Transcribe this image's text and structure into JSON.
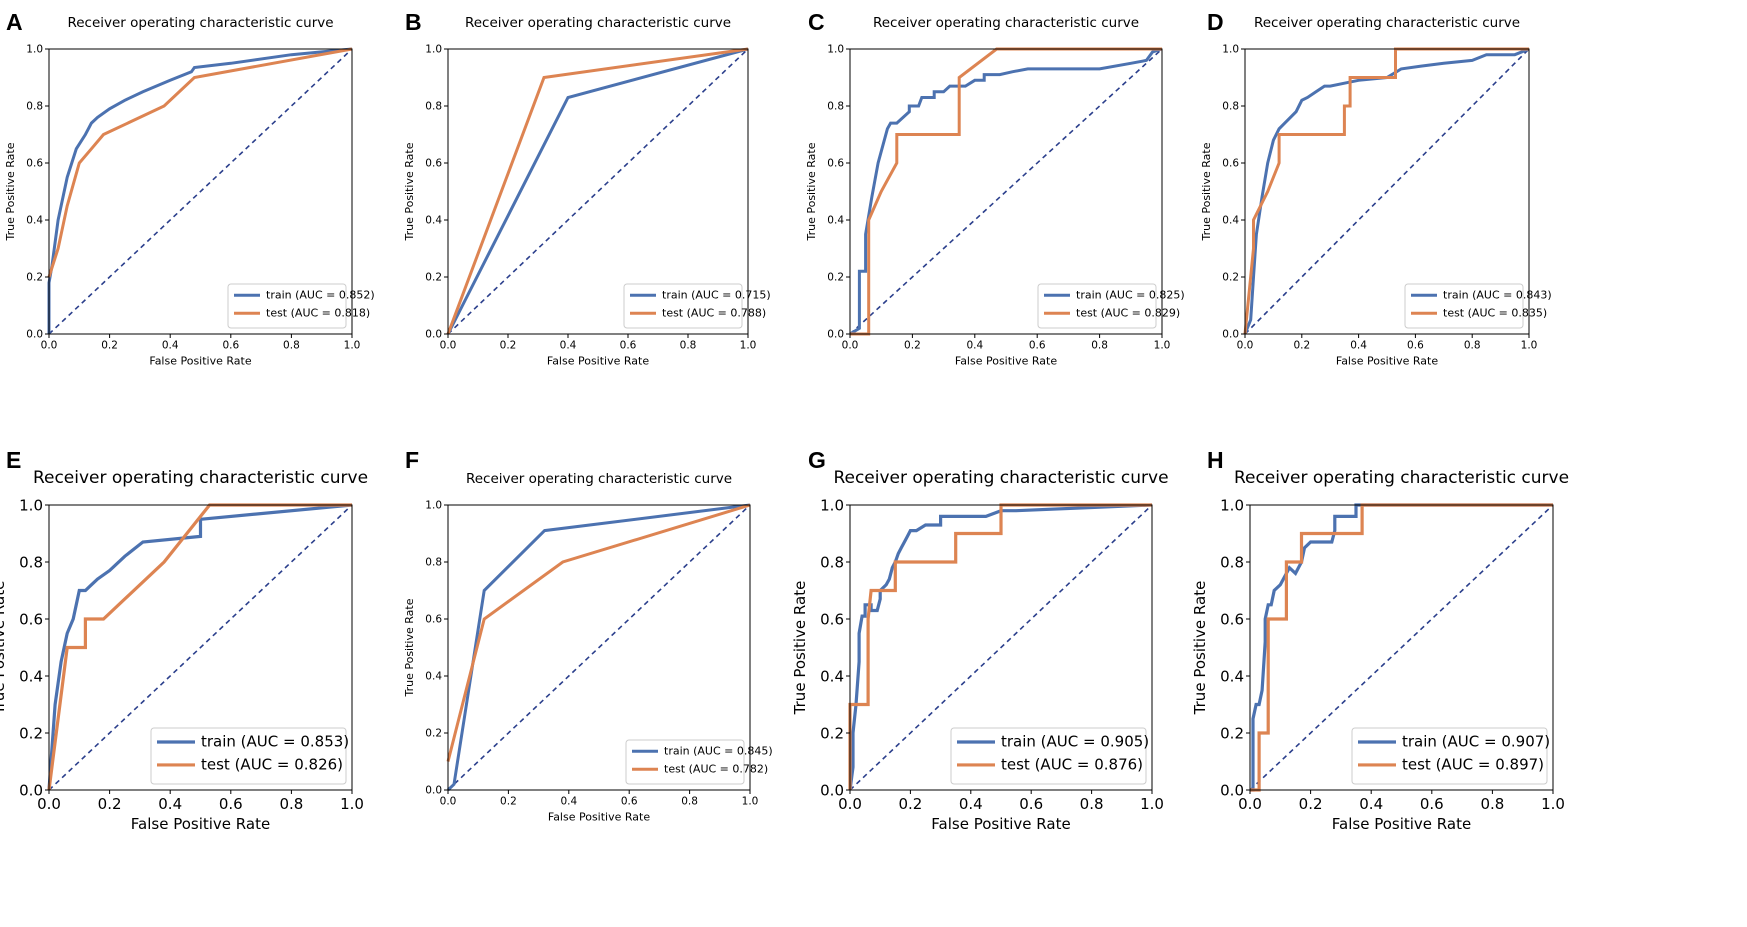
{
  "figure": {
    "description_labels": [
      "A",
      "B",
      "C",
      "D",
      "E",
      "F",
      "G",
      "H"
    ]
  },
  "chart_data": [
    {
      "panel": "A",
      "type": "line",
      "title": "Receiver operating characteristic curve",
      "xlabel": "False Positive Rate",
      "ylabel": "True Positive Rate",
      "xlim": [
        0,
        1
      ],
      "ylim": [
        0,
        1
      ],
      "xticks": [
        "0.0",
        "0.2",
        "0.4",
        "0.6",
        "0.8",
        "1.0"
      ],
      "yticks": [
        "0.0",
        "0.2",
        "0.4",
        "0.6",
        "0.8",
        "1.0"
      ],
      "legend_position": "lower-right",
      "series": [
        {
          "name": "train (AUC = 0.852)",
          "color": "#4c72b0",
          "x": [
            0,
            0,
            0.01,
            0.03,
            0.06,
            0.09,
            0.12,
            0.14,
            0.16,
            0.2,
            0.25,
            0.31,
            0.4,
            0.47,
            0.48,
            0.6,
            0.8,
            1
          ],
          "y": [
            0,
            0.18,
            0.24,
            0.4,
            0.55,
            0.65,
            0.7,
            0.74,
            0.76,
            0.79,
            0.82,
            0.85,
            0.89,
            0.92,
            0.935,
            0.95,
            0.98,
            1
          ]
        },
        {
          "name": "test (AUC = 0.818)",
          "color": "#dd8452",
          "x": [
            0,
            0.03,
            0.06,
            0.1,
            0.14,
            0.18,
            0.38,
            0.48,
            1
          ],
          "y": [
            0.2,
            0.3,
            0.45,
            0.6,
            0.65,
            0.7,
            0.8,
            0.9,
            1
          ]
        }
      ],
      "diagonal_color": "#2b3f8c"
    },
    {
      "panel": "B",
      "type": "line",
      "title": "Receiver operating characteristic curve",
      "xlabel": "False Positive Rate",
      "ylabel": "True Positive Rate",
      "xlim": [
        0,
        1
      ],
      "ylim": [
        0,
        1
      ],
      "xticks": [
        "0.0",
        "0.2",
        "0.4",
        "0.6",
        "0.8",
        "1.0"
      ],
      "yticks": [
        "0.0",
        "0.2",
        "0.4",
        "0.6",
        "0.8",
        "1.0"
      ],
      "legend_position": "lower-right",
      "series": [
        {
          "name": "train (AUC = 0.715)",
          "color": "#4c72b0",
          "x": [
            0,
            0.4,
            1
          ],
          "y": [
            0,
            0.83,
            1
          ]
        },
        {
          "name": "test (AUC = 0.788)",
          "color": "#dd8452",
          "x": [
            0,
            0.32,
            1
          ],
          "y": [
            0,
            0.9,
            1
          ]
        }
      ],
      "diagonal_color": "#2b3f8c"
    },
    {
      "panel": "C",
      "type": "line",
      "title": "Receiver operating characteristic curve",
      "xlabel": "False Positive Rate",
      "ylabel": "True Positive Rate",
      "xlim": [
        0,
        1
      ],
      "ylim": [
        0,
        1
      ],
      "xticks": [
        "0.0",
        "0.2",
        "0.4",
        "0.6",
        "0.8",
        "1.0"
      ],
      "yticks": [
        "0.0",
        "0.2",
        "0.4",
        "0.6",
        "0.8",
        "1.0"
      ],
      "legend_position": "lower-right",
      "series": [
        {
          "name": "train (AUC = 0.825)",
          "color": "#4c72b0",
          "x": [
            0,
            0.03,
            0.03,
            0.05,
            0.05,
            0.07,
            0.09,
            0.11,
            0.12,
            0.13,
            0.15,
            0.19,
            0.19,
            0.22,
            0.23,
            0.27,
            0.27,
            0.3,
            0.32,
            0.37,
            0.4,
            0.43,
            0.43,
            0.48,
            0.52,
            0.57,
            0.8,
            0.9,
            0.95,
            0.97,
            1
          ],
          "y": [
            0,
            0.02,
            0.22,
            0.22,
            0.35,
            0.48,
            0.6,
            0.68,
            0.72,
            0.74,
            0.74,
            0.78,
            0.8,
            0.8,
            0.83,
            0.83,
            0.85,
            0.85,
            0.87,
            0.87,
            0.89,
            0.89,
            0.91,
            0.91,
            0.92,
            0.93,
            0.93,
            0.95,
            0.96,
            0.99,
            1
          ]
        },
        {
          "name": "test (AUC = 0.829)",
          "color": "#dd8452",
          "x": [
            0,
            0.06,
            0.06,
            0.1,
            0.15,
            0.15,
            0.35,
            0.35,
            0.47,
            1
          ],
          "y": [
            0,
            0,
            0.4,
            0.5,
            0.6,
            0.7,
            0.7,
            0.9,
            1,
            1
          ]
        }
      ],
      "diagonal_color": "#2b3f8c"
    },
    {
      "panel": "D",
      "type": "line",
      "title": "Receiver operating characteristic curve",
      "xlabel": "False Positive Rate",
      "ylabel": "True Positive Rate",
      "xlim": [
        0,
        1
      ],
      "ylim": [
        0,
        1
      ],
      "xticks": [
        "0.0",
        "0.2",
        "0.4",
        "0.6",
        "0.8",
        "1.0"
      ],
      "yticks": [
        "0.0",
        "0.2",
        "0.4",
        "0.6",
        "0.8",
        "1.0"
      ],
      "legend_position": "lower-right",
      "series": [
        {
          "name": "train (AUC = 0.843)",
          "color": "#4c72b0",
          "x": [
            0,
            0.02,
            0.03,
            0.04,
            0.06,
            0.08,
            0.1,
            0.12,
            0.14,
            0.18,
            0.2,
            0.22,
            0.25,
            0.28,
            0.3,
            0.35,
            0.4,
            0.5,
            0.55,
            0.62,
            0.7,
            0.8,
            0.85,
            0.95,
            1
          ],
          "y": [
            0,
            0.05,
            0.2,
            0.35,
            0.48,
            0.6,
            0.68,
            0.72,
            0.74,
            0.78,
            0.82,
            0.83,
            0.85,
            0.87,
            0.87,
            0.88,
            0.89,
            0.9,
            0.93,
            0.94,
            0.95,
            0.96,
            0.98,
            0.98,
            1
          ],
          "note": "approximate"
        },
        {
          "name": "test (AUC = 0.835)",
          "color": "#dd8452",
          "x": [
            0,
            0.03,
            0.03,
            0.08,
            0.12,
            0.12,
            0.15,
            0.15,
            0.35,
            0.35,
            0.37,
            0.37,
            0.53,
            0.53,
            1
          ],
          "y": [
            0,
            0.3,
            0.4,
            0.5,
            0.6,
            0.7,
            0.7,
            0.7,
            0.7,
            0.8,
            0.8,
            0.9,
            0.9,
            1,
            1
          ]
        }
      ],
      "diagonal_color": "#2b3f8c"
    },
    {
      "panel": "E",
      "type": "line",
      "title": "Receiver operating characteristic curve",
      "xlabel": "False Positive Rate",
      "ylabel": "True Positive Rate",
      "xlim": [
        0,
        1
      ],
      "ylim": [
        0,
        1
      ],
      "xticks": [
        "0.0",
        "0.2",
        "0.4",
        "0.6",
        "0.8",
        "1.0"
      ],
      "yticks": [
        "0.0",
        "0.2",
        "0.4",
        "0.6",
        "0.8",
        "1.0"
      ],
      "legend_position": "lower-right",
      "series": [
        {
          "name": "train (AUC = 0.853)",
          "color": "#4c72b0",
          "x": [
            0,
            0.02,
            0.04,
            0.06,
            0.08,
            0.1,
            0.12,
            0.14,
            0.16,
            0.2,
            0.25,
            0.31,
            0.5,
            0.5,
            1
          ],
          "y": [
            0,
            0.3,
            0.45,
            0.55,
            0.6,
            0.7,
            0.7,
            0.72,
            0.74,
            0.77,
            0.82,
            0.87,
            0.89,
            0.95,
            1
          ]
        },
        {
          "name": "test (AUC = 0.826)",
          "color": "#dd8452",
          "x": [
            0,
            0.06,
            0.06,
            0.12,
            0.12,
            0.18,
            0.38,
            0.53,
            1
          ],
          "y": [
            0,
            0.5,
            0.5,
            0.5,
            0.6,
            0.6,
            0.8,
            1,
            1
          ]
        }
      ],
      "diagonal_color": "#2b3f8c"
    },
    {
      "panel": "F",
      "type": "line",
      "title": "Receiver operating characteristic curve",
      "xlabel": "False Positive Rate",
      "ylabel": "True Positive Rate",
      "xlim": [
        0,
        1
      ],
      "ylim": [
        0,
        1
      ],
      "xticks": [
        "0.0",
        "0.2",
        "0.4",
        "0.6",
        "0.8",
        "1.0"
      ],
      "yticks": [
        "0.0",
        "0.2",
        "0.4",
        "0.6",
        "0.8",
        "1.0"
      ],
      "legend_position": "lower-right",
      "series": [
        {
          "name": "train (AUC = 0.845)",
          "color": "#4c72b0",
          "x": [
            0,
            0.02,
            0.12,
            0.32,
            1
          ],
          "y": [
            0,
            0.02,
            0.7,
            0.91,
            1
          ]
        },
        {
          "name": "test (AUC = 0.782)",
          "color": "#dd8452",
          "x": [
            0,
            0.12,
            0.38,
            1
          ],
          "y": [
            0.1,
            0.6,
            0.8,
            1
          ]
        }
      ],
      "diagonal_color": "#2b3f8c"
    },
    {
      "panel": "G",
      "type": "line",
      "title": "Receiver operating characteristic curve",
      "xlabel": "False Positive Rate",
      "ylabel": "True Positive Rate",
      "xlim": [
        0,
        1
      ],
      "ylim": [
        0,
        1
      ],
      "xticks": [
        "0.0",
        "0.2",
        "0.4",
        "0.6",
        "0.8",
        "1.0"
      ],
      "yticks": [
        "0.0",
        "0.2",
        "0.4",
        "0.6",
        "0.8",
        "1.0"
      ],
      "legend_position": "lower-right",
      "series": [
        {
          "name": "train (AUC = 0.905)",
          "color": "#4c72b0",
          "x": [
            0,
            0.01,
            0.01,
            0.02,
            0.03,
            0.03,
            0.04,
            0.05,
            0.05,
            0.07,
            0.07,
            0.09,
            0.1,
            0.1,
            0.12,
            0.13,
            0.14,
            0.15,
            0.16,
            0.17,
            0.18,
            0.19,
            0.2,
            0.22,
            0.25,
            0.3,
            0.3,
            0.45,
            0.5,
            0.55,
            1
          ],
          "y": [
            0,
            0.08,
            0.2,
            0.3,
            0.45,
            0.55,
            0.61,
            0.61,
            0.65,
            0.65,
            0.63,
            0.63,
            0.67,
            0.7,
            0.72,
            0.74,
            0.78,
            0.8,
            0.83,
            0.85,
            0.87,
            0.89,
            0.91,
            0.91,
            0.93,
            0.93,
            0.96,
            0.96,
            0.98,
            0.98,
            1
          ]
        },
        {
          "name": "test (AUC = 0.876)",
          "color": "#dd8452",
          "x": [
            0,
            0,
            0.06,
            0.06,
            0.07,
            0.12,
            0.12,
            0.15,
            0.15,
            0.35,
            0.35,
            0.5,
            0.5,
            1
          ],
          "y": [
            0,
            0.3,
            0.3,
            0.6,
            0.7,
            0.7,
            0.7,
            0.7,
            0.8,
            0.8,
            0.9,
            0.9,
            1,
            1
          ]
        }
      ],
      "diagonal_color": "#2b3f8c"
    },
    {
      "panel": "H",
      "type": "line",
      "title": "Receiver operating characteristic curve",
      "xlabel": "False Positive Rate",
      "ylabel": "True Positive Rate",
      "xlim": [
        0,
        1
      ],
      "ylim": [
        0,
        1
      ],
      "xticks": [
        "0.0",
        "0.2",
        "0.4",
        "0.6",
        "0.8",
        "1.0"
      ],
      "yticks": [
        "0.0",
        "0.2",
        "0.4",
        "0.6",
        "0.8",
        "1.0"
      ],
      "legend_position": "lower-right",
      "series": [
        {
          "name": "train (AUC = 0.907)",
          "color": "#4c72b0",
          "x": [
            0,
            0.01,
            0.01,
            0.02,
            0.03,
            0.04,
            0.05,
            0.05,
            0.06,
            0.07,
            0.08,
            0.08,
            0.1,
            0.12,
            0.13,
            0.15,
            0.17,
            0.18,
            0.2,
            0.22,
            0.27,
            0.28,
            0.28,
            0.33,
            0.35,
            0.35,
            1
          ],
          "y": [
            0,
            0,
            0.25,
            0.3,
            0.3,
            0.35,
            0.52,
            0.6,
            0.65,
            0.65,
            0.7,
            0.7,
            0.72,
            0.76,
            0.78,
            0.76,
            0.8,
            0.85,
            0.87,
            0.87,
            0.87,
            0.91,
            0.96,
            0.96,
            0.96,
            1,
            1
          ]
        },
        {
          "name": "test (AUC = 0.897)",
          "color": "#dd8452",
          "x": [
            0,
            0.03,
            0.03,
            0.06,
            0.06,
            0.12,
            0.12,
            0.17,
            0.17,
            0.37,
            0.37,
            1
          ],
          "y": [
            0,
            0,
            0.2,
            0.2,
            0.6,
            0.6,
            0.8,
            0.8,
            0.9,
            0.9,
            1,
            1
          ]
        }
      ],
      "diagonal_color": "#2b3f8c"
    }
  ]
}
